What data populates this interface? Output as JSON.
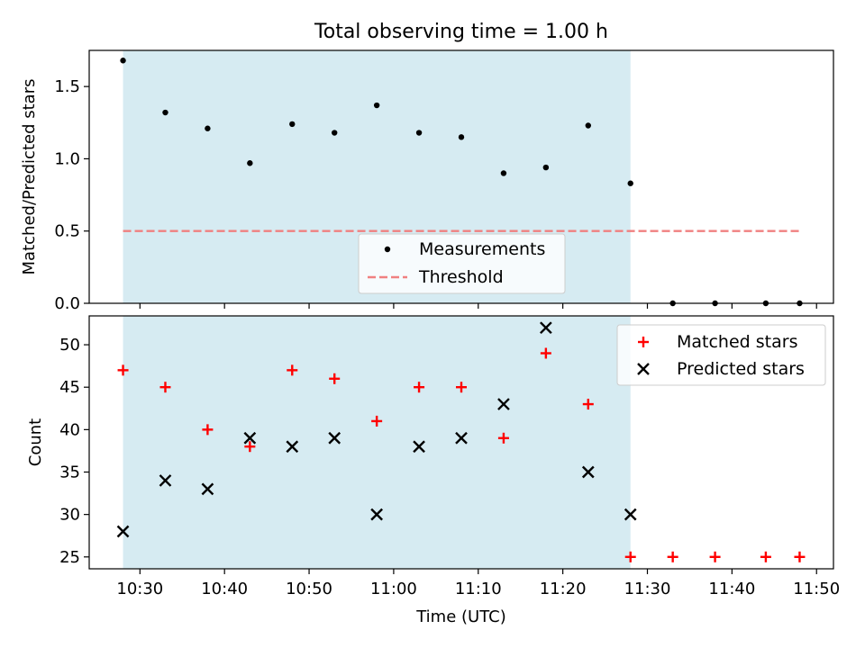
{
  "colors": {
    "span": "#add8e6",
    "measurement": "#000000",
    "threshold": "#f08080",
    "matched": "#ff0000",
    "predicted": "#000000"
  },
  "chart_data": [
    {
      "type": "scatter",
      "title": "Total observing time = 1.00 h",
      "xlabel": "",
      "ylabel": "Matched/Predicted stars",
      "xlim": [
        "10:24",
        "11:52"
      ],
      "ylim": [
        0,
        1.75
      ],
      "y_ticks": [
        0.0,
        0.5,
        1.0,
        1.5
      ],
      "y_tick_labels": [
        "0.0",
        "0.5",
        "1.0",
        "1.5"
      ],
      "shaded_interval": [
        "10:28",
        "11:28"
      ],
      "legend_position": "lower center",
      "series": [
        {
          "name": "Measurements",
          "marker": "dot",
          "x": [
            "10:28",
            "10:33",
            "10:38",
            "10:43",
            "10:48",
            "10:53",
            "10:58",
            "11:03",
            "11:08",
            "11:13",
            "11:18",
            "11:23",
            "11:28",
            "11:33",
            "11:38",
            "11:44",
            "11:48"
          ],
          "y": [
            1.68,
            1.32,
            1.21,
            0.97,
            1.24,
            1.18,
            1.37,
            1.18,
            1.15,
            0.9,
            0.94,
            1.23,
            0.83,
            0,
            0,
            0,
            0
          ]
        },
        {
          "name": "Threshold",
          "style": "dashed-line",
          "x": [
            "10:28",
            "11:48"
          ],
          "y": [
            0.5,
            0.5
          ]
        }
      ]
    },
    {
      "type": "scatter",
      "title": "",
      "xlabel": "Time (UTC)",
      "ylabel": "Count",
      "xlim": [
        "10:24",
        "11:52"
      ],
      "ylim": [
        23.6,
        53.4
      ],
      "x_ticks": [
        "10:30",
        "10:40",
        "10:50",
        "11:00",
        "11:10",
        "11:20",
        "11:30",
        "11:40",
        "11:50"
      ],
      "y_ticks": [
        25,
        30,
        35,
        40,
        45,
        50
      ],
      "y_tick_labels": [
        "25",
        "30",
        "35",
        "40",
        "45",
        "50"
      ],
      "shaded_interval": [
        "10:28",
        "11:28"
      ],
      "legend_position": "upper right",
      "series": [
        {
          "name": "Matched stars",
          "marker": "plus",
          "x": [
            "10:28",
            "10:33",
            "10:38",
            "10:43",
            "10:48",
            "10:53",
            "10:58",
            "11:03",
            "11:08",
            "11:13",
            "11:18",
            "11:23",
            "11:28",
            "11:33",
            "11:38",
            "11:44",
            "11:48"
          ],
          "y": [
            47,
            45,
            40,
            38,
            47,
            46,
            41,
            45,
            45,
            39,
            49,
            43,
            25,
            25,
            25,
            25,
            25
          ]
        },
        {
          "name": "Predicted stars",
          "marker": "x",
          "x": [
            "10:28",
            "10:33",
            "10:38",
            "10:43",
            "10:48",
            "10:53",
            "10:58",
            "11:03",
            "11:08",
            "11:13",
            "11:18",
            "11:23",
            "11:28"
          ],
          "y": [
            28,
            34,
            33,
            39,
            38,
            39,
            30,
            38,
            39,
            43,
            52,
            35,
            30
          ]
        }
      ]
    }
  ]
}
